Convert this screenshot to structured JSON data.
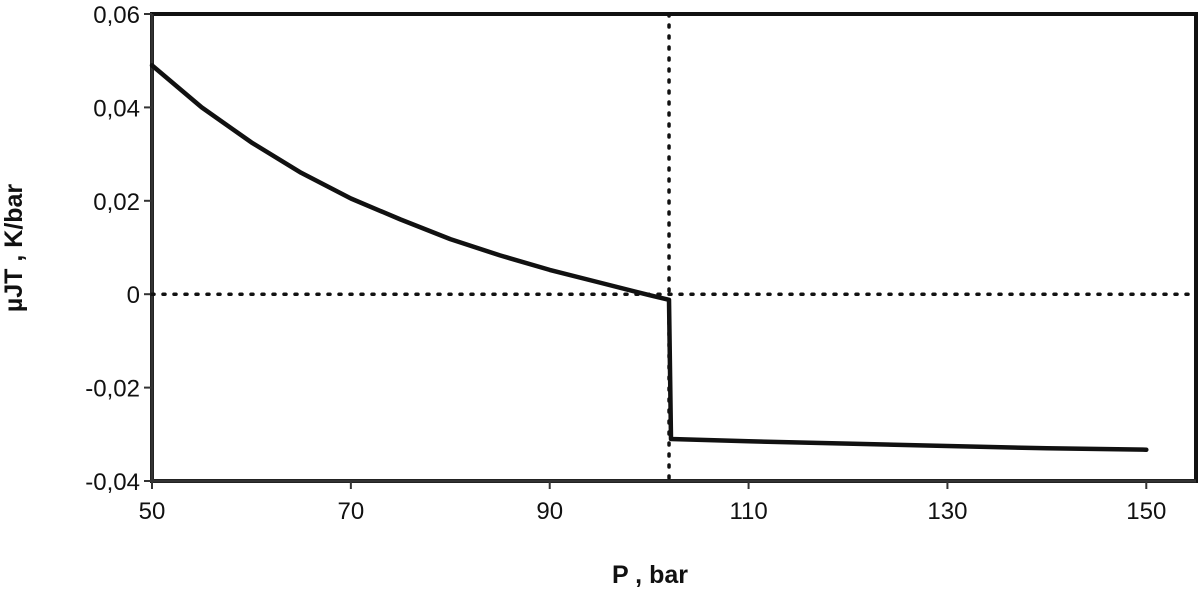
{
  "chart_data": {
    "type": "line",
    "title": "",
    "xlabel": "P , bar",
    "ylabel": "µJT , K/bar",
    "xlim": [
      50,
      155
    ],
    "ylim": [
      -0.04,
      0.06
    ],
    "x_ticks": [
      50,
      70,
      90,
      110,
      130,
      150
    ],
    "x_tick_labels": [
      "50",
      "70",
      "90",
      "110",
      "130",
      "150"
    ],
    "y_ticks": [
      -0.04,
      -0.02,
      0,
      0.02,
      0.04,
      0.06
    ],
    "y_tick_labels": [
      "-0,04",
      "-0,02",
      "0",
      "0,02",
      "0,04",
      "0,06"
    ],
    "grid": false,
    "series": [
      {
        "color": "#111111",
        "x": [
          50,
          55,
          60,
          65,
          70,
          75,
          80,
          85,
          90,
          95,
          100,
          102,
          102.2,
          110,
          120,
          130,
          140,
          150
        ],
        "y": [
          0.049,
          0.04,
          0.0325,
          0.026,
          0.0205,
          0.016,
          0.0118,
          0.0083,
          0.0052,
          0.0025,
          -0.0002,
          -0.0012,
          -0.031,
          -0.0315,
          -0.032,
          -0.0325,
          -0.033,
          -0.0333
        ]
      }
    ],
    "reference_lines": [
      {
        "orientation": "horizontal",
        "y": 0,
        "style": "dotted"
      },
      {
        "orientation": "vertical",
        "x": 102,
        "style": "dotted"
      }
    ]
  }
}
